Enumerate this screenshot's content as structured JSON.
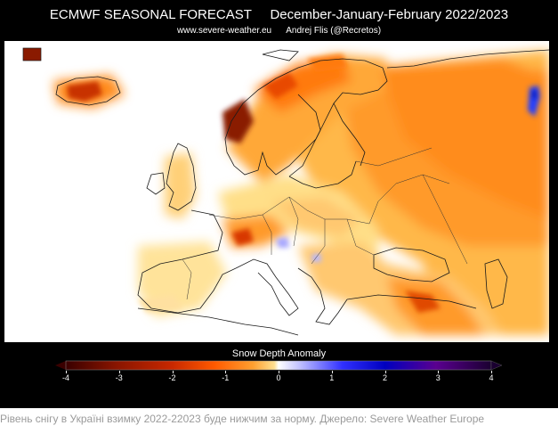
{
  "figure": {
    "title": "ECMWF SEASONAL FORECAST     December-January-February 2022/2023",
    "subtitle": "www.severe-weather.eu      Andrej Flis (@Recretos)",
    "colorbar": {
      "title": "Snow Depth Anomaly",
      "ticks": [
        "-4",
        "-3",
        "-2",
        "-1",
        "0",
        "1",
        "2",
        "3",
        "4"
      ],
      "min": -4,
      "max": 4,
      "colors": [
        "#3a0000",
        "#8a1500",
        "#e03000",
        "#ff7a00",
        "#ffd060",
        "#ffffff",
        "#b0b0ff",
        "#0000ff",
        "#6a00a0",
        "#1a0030"
      ]
    }
  },
  "map": {
    "region": "Europe",
    "land_color": "#ffffff",
    "anomaly_colors": {
      "strong_deficit": "#8a1a00",
      "deficit": "#e84800",
      "moderate_deficit": "#ff8c1a",
      "slight_deficit": "#ffb84a",
      "weak_deficit": "#ffdf88",
      "surplus": "#2040ff"
    }
  },
  "caption": "Рівень снігу в Україні взимку 2022-22023 буде нижчим за норму. Джерело: Severe Weather Europe"
}
